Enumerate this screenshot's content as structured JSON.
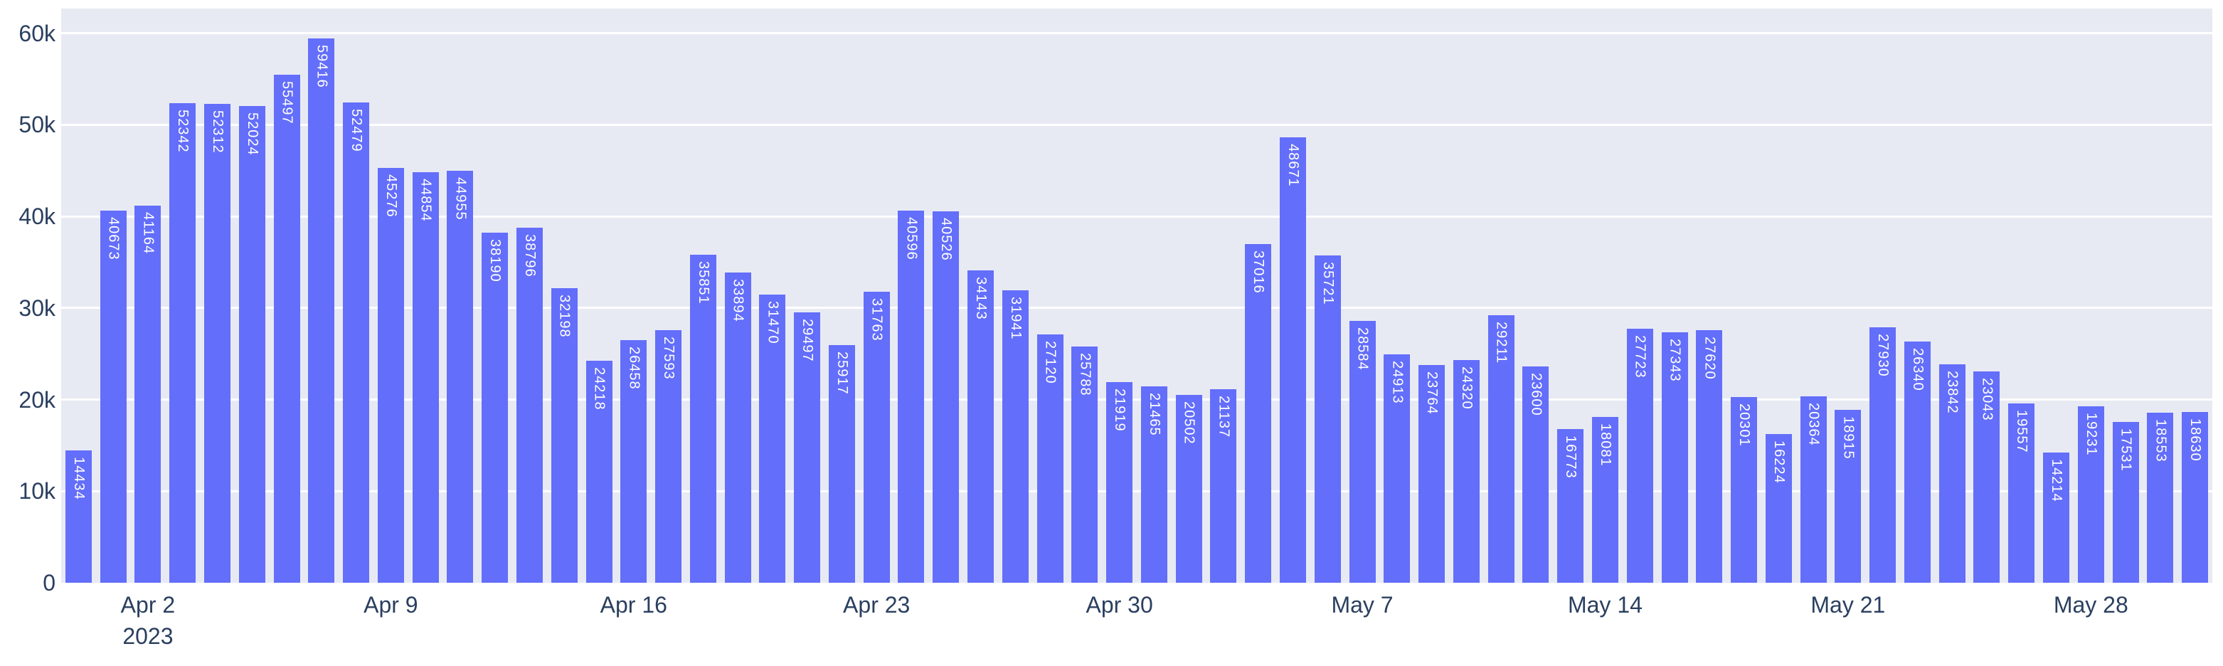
{
  "chart_data": {
    "type": "bar",
    "title": "",
    "values": [
      14434,
      40673,
      41164,
      52342,
      52312,
      52024,
      55497,
      59416,
      52479,
      45276,
      44854,
      44955,
      38190,
      38796,
      32198,
      24218,
      26458,
      27593,
      35851,
      33894,
      31470,
      29497,
      25917,
      31763,
      40596,
      40526,
      34143,
      31941,
      27120,
      25788,
      21919,
      21465,
      20502,
      21137,
      37016,
      48671,
      35721,
      28584,
      24913,
      23764,
      24320,
      29211,
      23600,
      16773,
      18081,
      27723,
      27343,
      27620,
      20301,
      16224,
      20364,
      18915,
      27930,
      26340,
      23842,
      23043,
      19557,
      14214,
      19231,
      17531,
      18553,
      18630
    ],
    "bar_value_labels_visible": true,
    "x_ticks": [
      {
        "index": 2,
        "label": "Apr 2",
        "sublabel": "2023"
      },
      {
        "index": 9,
        "label": "Apr 9"
      },
      {
        "index": 16,
        "label": "Apr 16"
      },
      {
        "index": 23,
        "label": "Apr 23"
      },
      {
        "index": 30,
        "label": "Apr 30"
      },
      {
        "index": 37,
        "label": "May 7"
      },
      {
        "index": 44,
        "label": "May 14"
      },
      {
        "index": 51,
        "label": "May 21"
      },
      {
        "index": 58,
        "label": "May 28"
      }
    ],
    "y_ticks": [
      {
        "value": 0,
        "label": "0"
      },
      {
        "value": 10000,
        "label": "10k"
      },
      {
        "value": 20000,
        "label": "20k"
      },
      {
        "value": 30000,
        "label": "30k"
      },
      {
        "value": 40000,
        "label": "40k"
      },
      {
        "value": 50000,
        "label": "50k"
      },
      {
        "value": 60000,
        "label": "60k"
      }
    ],
    "ylim": [
      0,
      62700
    ],
    "xlabel": "",
    "ylabel": "",
    "grid": true,
    "legend": null
  },
  "colors": {
    "bar": "#636efa",
    "bar_label_text": "#ffffff",
    "plot_background": "#e8eaf3",
    "gridline": "#ffffff",
    "tick_text": "#2a3f5f",
    "figure_background": "#ffffff"
  }
}
